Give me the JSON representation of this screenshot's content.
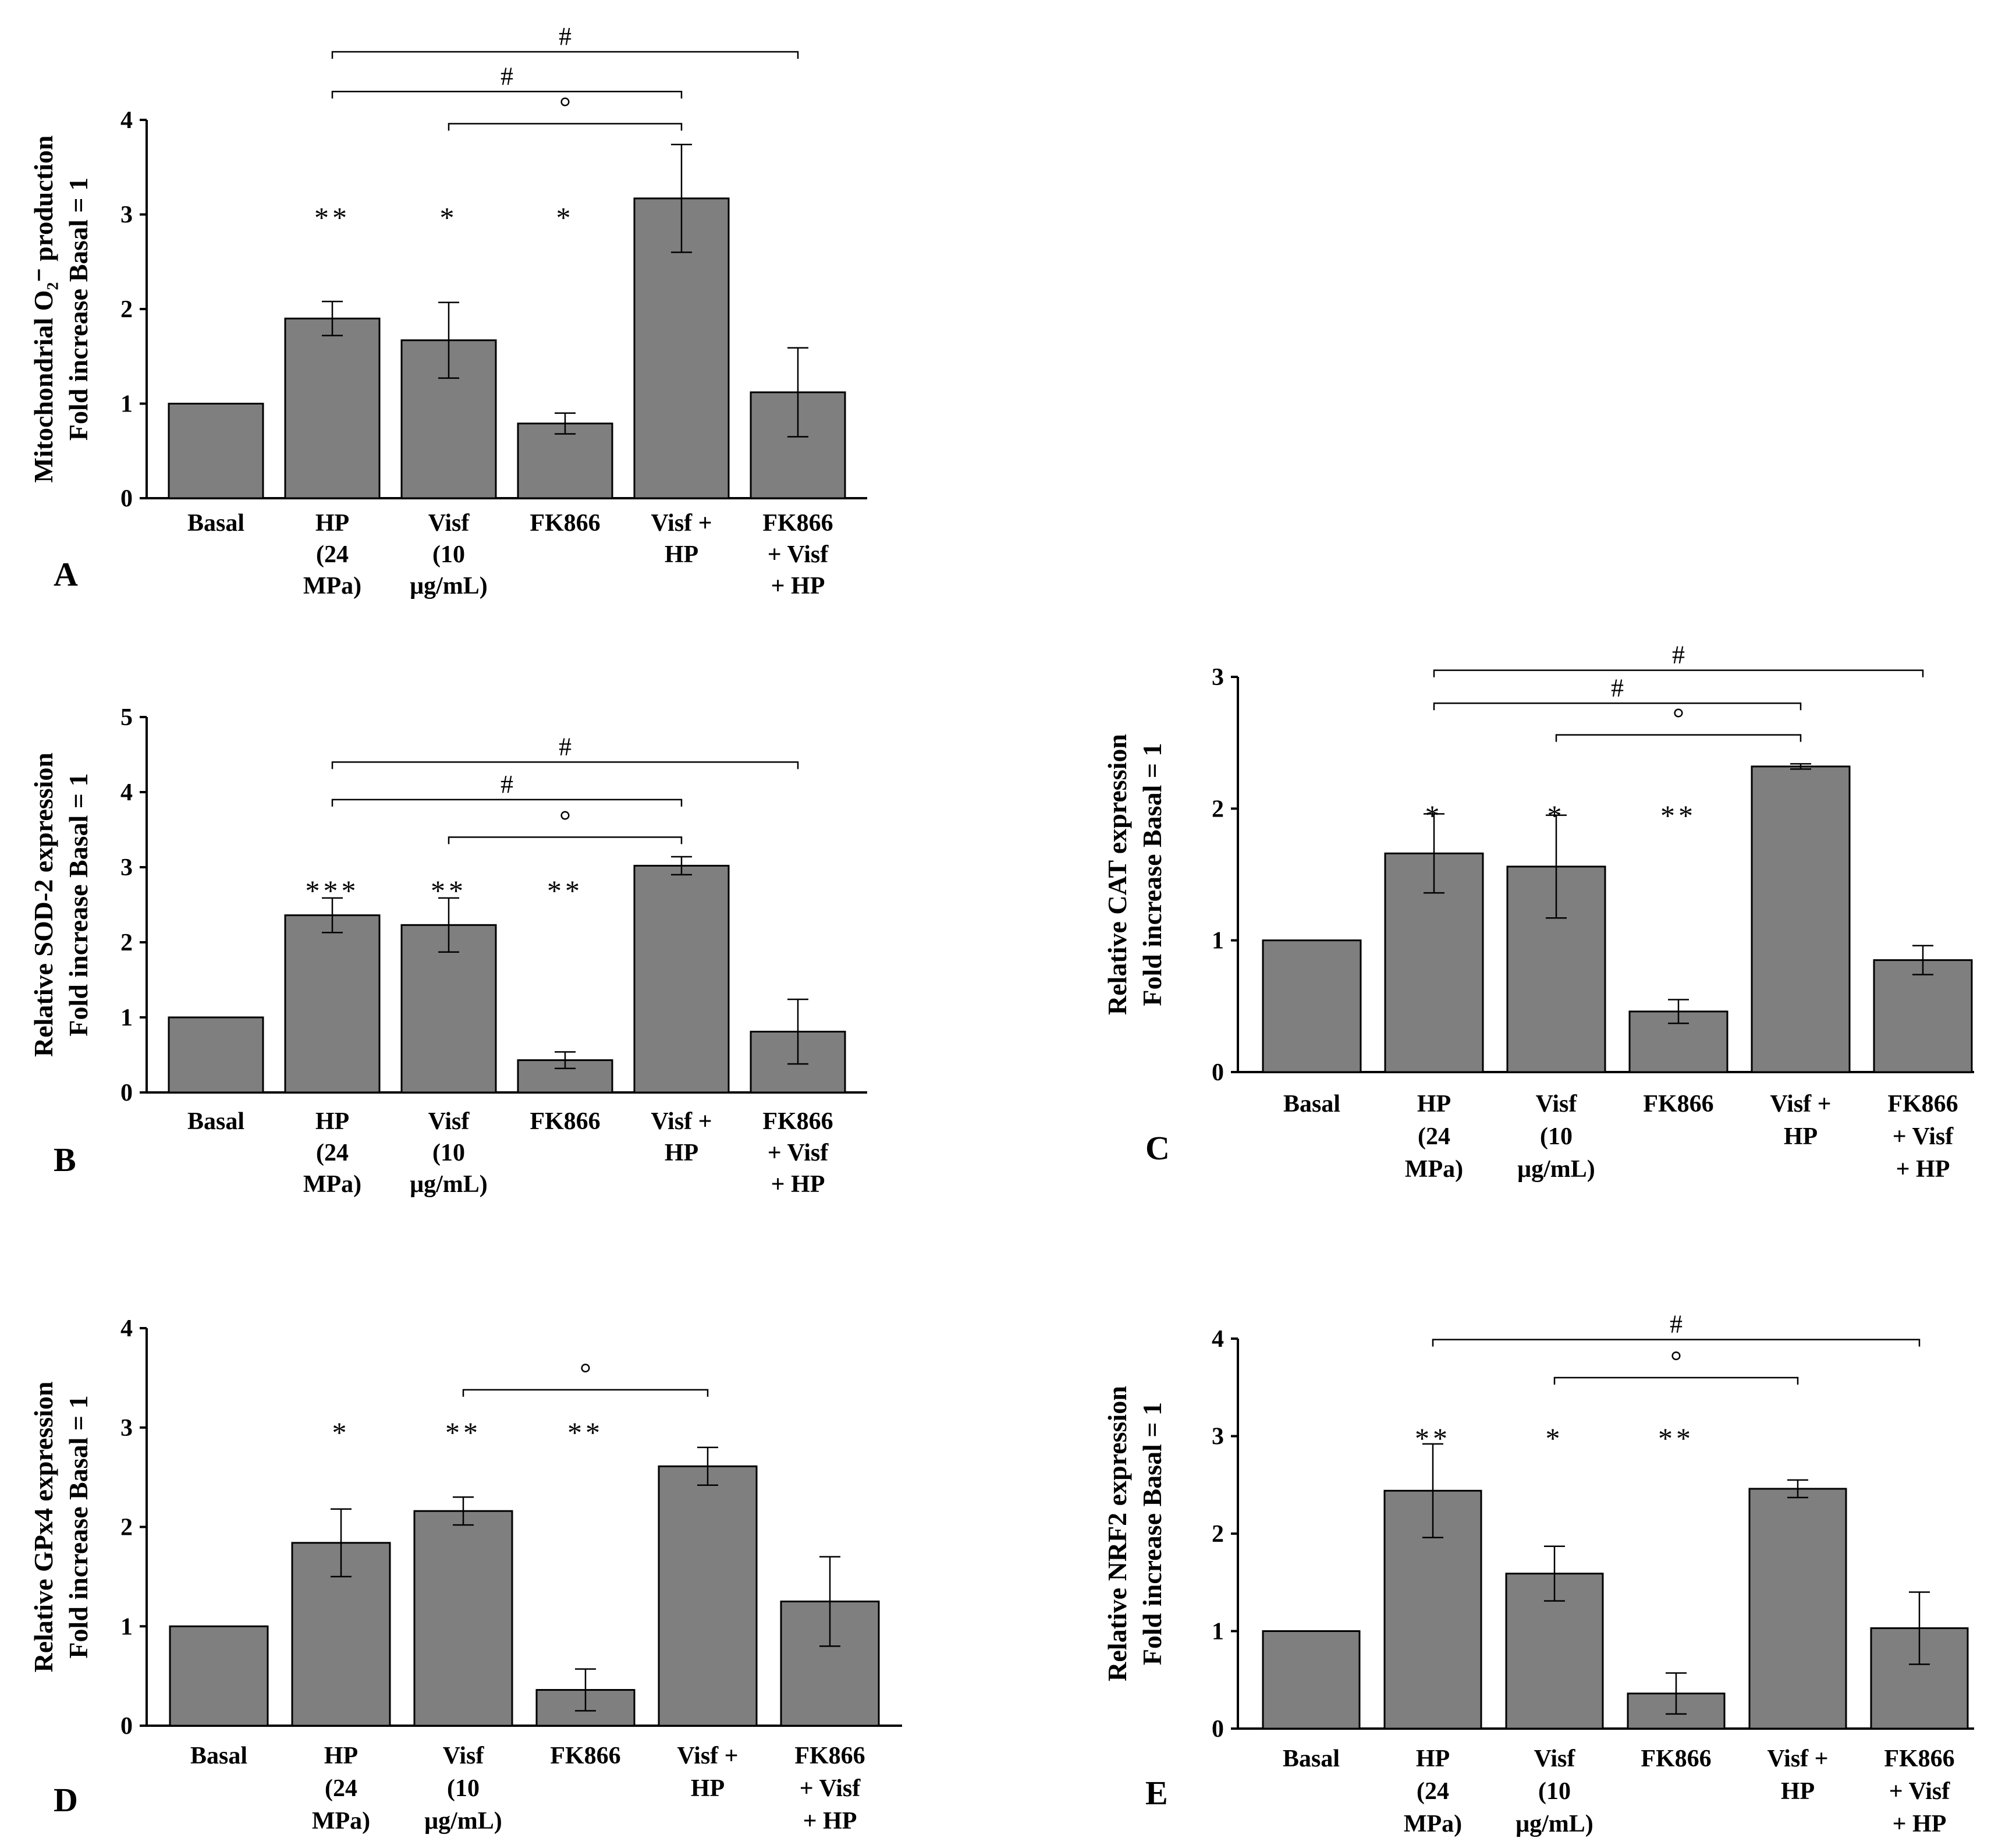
{
  "chart_data": [
    {
      "type": "bar",
      "panel": "A",
      "ylabel": [
        "Mitochondrial O₂⁻ production",
        "Fold increase Basal = 1"
      ],
      "ylim": [
        0,
        4
      ],
      "yticks": [
        0,
        1,
        2,
        3,
        4
      ],
      "categories": [
        [
          "Basal"
        ],
        [
          "HP",
          "(24",
          "MPa)"
        ],
        [
          "Visf",
          "(10",
          "μg/mL)"
        ],
        [
          "FK866"
        ],
        [
          "Visf +",
          "HP"
        ],
        [
          "FK866",
          "+ Visf",
          "+ HP"
        ]
      ],
      "values": [
        1.0,
        1.9,
        1.67,
        0.79,
        3.17,
        1.12
      ],
      "errors": [
        0,
        0.18,
        0.4,
        0.11,
        0.57,
        0.47
      ],
      "sig": [
        "",
        "**",
        "*",
        "*",
        "",
        ""
      ],
      "sig_y": 3.0,
      "brackets": [
        {
          "from": 1,
          "to": 5,
          "label": "#",
          "y": 4.72
        },
        {
          "from": 1,
          "to": 4,
          "label": "#",
          "y": 4.3
        },
        {
          "from": 2,
          "to": 4,
          "label": "°",
          "y": 3.96
        }
      ]
    },
    {
      "type": "bar",
      "panel": "B",
      "ylabel": [
        "Relative SOD-2 expression",
        "Fold increase Basal = 1"
      ],
      "ylim": [
        0,
        5
      ],
      "yticks": [
        0,
        1,
        2,
        3,
        4,
        5
      ],
      "categories": [
        [
          "Basal"
        ],
        [
          "HP",
          "(24",
          "MPa)"
        ],
        [
          "Visf",
          "(10",
          "μg/mL)"
        ],
        [
          "FK866"
        ],
        [
          "Visf +",
          "HP"
        ],
        [
          "FK866",
          "+ Visf",
          "+ HP"
        ]
      ],
      "values": [
        1.0,
        2.36,
        2.23,
        0.43,
        3.02,
        0.81
      ],
      "errors": [
        0,
        0.23,
        0.36,
        0.11,
        0.12,
        0.43
      ],
      "sig": [
        "",
        "***",
        "**",
        "**",
        "",
        ""
      ],
      "sig_y": 2.73,
      "brackets": [
        {
          "from": 1,
          "to": 5,
          "label": "#",
          "y": 4.4
        },
        {
          "from": 1,
          "to": 4,
          "label": "#",
          "y": 3.9
        },
        {
          "from": 2,
          "to": 4,
          "label": "°",
          "y": 3.4
        }
      ]
    },
    {
      "type": "bar",
      "panel": "C",
      "ylabel": [
        "Relative CAT expression",
        "Fold increase Basal = 1"
      ],
      "ylim": [
        0,
        3
      ],
      "yticks": [
        0,
        1,
        2,
        3
      ],
      "categories": [
        [
          "Basal"
        ],
        [
          "HP",
          "(24",
          "MPa)"
        ],
        [
          "Visf",
          "(10",
          "μg/mL)"
        ],
        [
          "FK866"
        ],
        [
          "Visf +",
          "HP"
        ],
        [
          "FK866",
          "+ Visf",
          "+ HP"
        ]
      ],
      "values": [
        1.0,
        1.66,
        1.56,
        0.46,
        2.32,
        0.85
      ],
      "errors": [
        0,
        0.3,
        0.39,
        0.09,
        0.02,
        0.11
      ],
      "sig": [
        "",
        "*",
        "*",
        "**",
        "",
        ""
      ],
      "sig_y": 1.97,
      "brackets": [
        {
          "from": 1,
          "to": 5,
          "label": "#",
          "y": 3.05
        },
        {
          "from": 1,
          "to": 4,
          "label": "#",
          "y": 2.8
        },
        {
          "from": 2,
          "to": 4,
          "label": "°",
          "y": 2.56
        }
      ]
    },
    {
      "type": "bar",
      "panel": "D",
      "ylabel": [
        "Relative GPx4 expression",
        "Fold increase Basal = 1"
      ],
      "ylim": [
        0,
        4
      ],
      "yticks": [
        0,
        1,
        2,
        3,
        4
      ],
      "categories": [
        [
          "Basal"
        ],
        [
          "HP",
          "(24",
          "MPa)"
        ],
        [
          "Visf",
          "(10",
          "μg/mL)"
        ],
        [
          "FK866"
        ],
        [
          "Visf +",
          "HP"
        ],
        [
          "FK866",
          "+ Visf",
          "+ HP"
        ]
      ],
      "values": [
        1.0,
        1.84,
        2.16,
        0.36,
        2.61,
        1.25
      ],
      "errors": [
        0,
        0.34,
        0.14,
        0.21,
        0.19,
        0.45
      ],
      "sig": [
        "",
        "*",
        "**",
        "**",
        "",
        ""
      ],
      "sig_y": 2.98,
      "brackets": [
        {
          "from": 2,
          "to": 4,
          "label": "°",
          "y": 3.38
        }
      ]
    },
    {
      "type": "bar",
      "panel": "E",
      "ylabel": [
        "Relative NRF2 expression",
        "Fold increase Basal = 1"
      ],
      "ylim": [
        0,
        4
      ],
      "yticks": [
        0,
        1,
        2,
        3,
        4
      ],
      "categories": [
        [
          "Basal"
        ],
        [
          "HP",
          "(24",
          "MPa)"
        ],
        [
          "Visf",
          "(10",
          "μg/mL)"
        ],
        [
          "FK866"
        ],
        [
          "Visf +",
          "HP"
        ],
        [
          "FK866",
          "+ Visf",
          "+ HP"
        ]
      ],
      "values": [
        1.0,
        2.44,
        1.59,
        0.36,
        2.46,
        1.03
      ],
      "errors": [
        0,
        0.48,
        0.28,
        0.21,
        0.09,
        0.37
      ],
      "sig": [
        "",
        "**",
        "*",
        "**",
        "",
        ""
      ],
      "sig_y": 3.01,
      "brackets": [
        {
          "from": 1,
          "to": 5,
          "label": "#",
          "y": 3.99
        },
        {
          "from": 2,
          "to": 4,
          "label": "°",
          "y": 3.6
        }
      ]
    }
  ]
}
